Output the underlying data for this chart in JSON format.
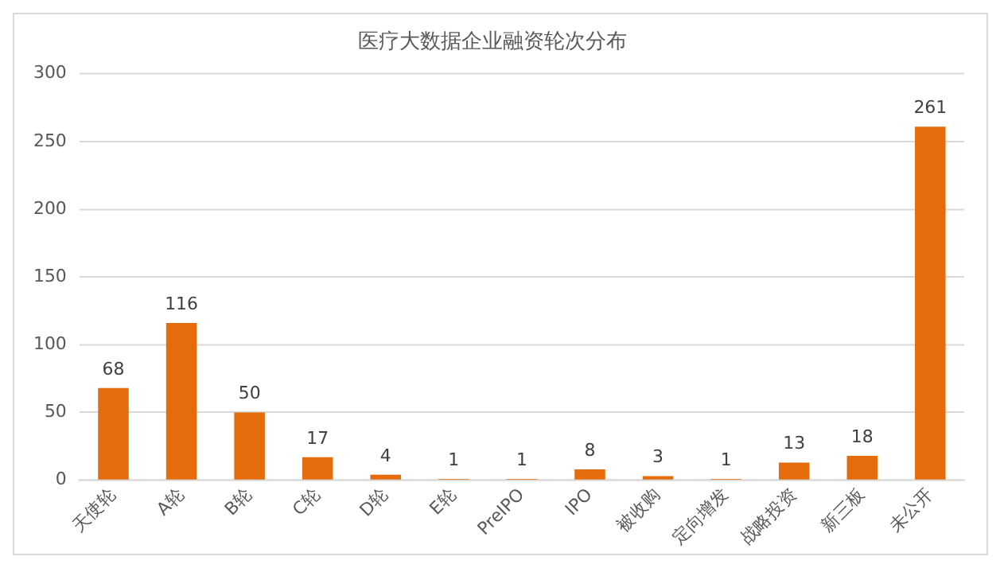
{
  "chart_data": {
    "type": "bar",
    "title": "医疗大数据企业融资轮次分布",
    "categories": [
      "天使轮",
      "A轮",
      "B轮",
      "C轮",
      "D轮",
      "E轮",
      "PreIPO",
      "IPO",
      "被收购",
      "定向增发",
      "战略投资",
      "新三板",
      "未公开"
    ],
    "values": [
      68,
      116,
      50,
      17,
      4,
      1,
      1,
      8,
      3,
      1,
      13,
      18,
      261
    ],
    "color": "#e46c0a",
    "ylim": [
      0,
      300
    ],
    "yticks": [
      0,
      50,
      100,
      150,
      200,
      250,
      300
    ],
    "grid": "y",
    "data_labels": true
  }
}
